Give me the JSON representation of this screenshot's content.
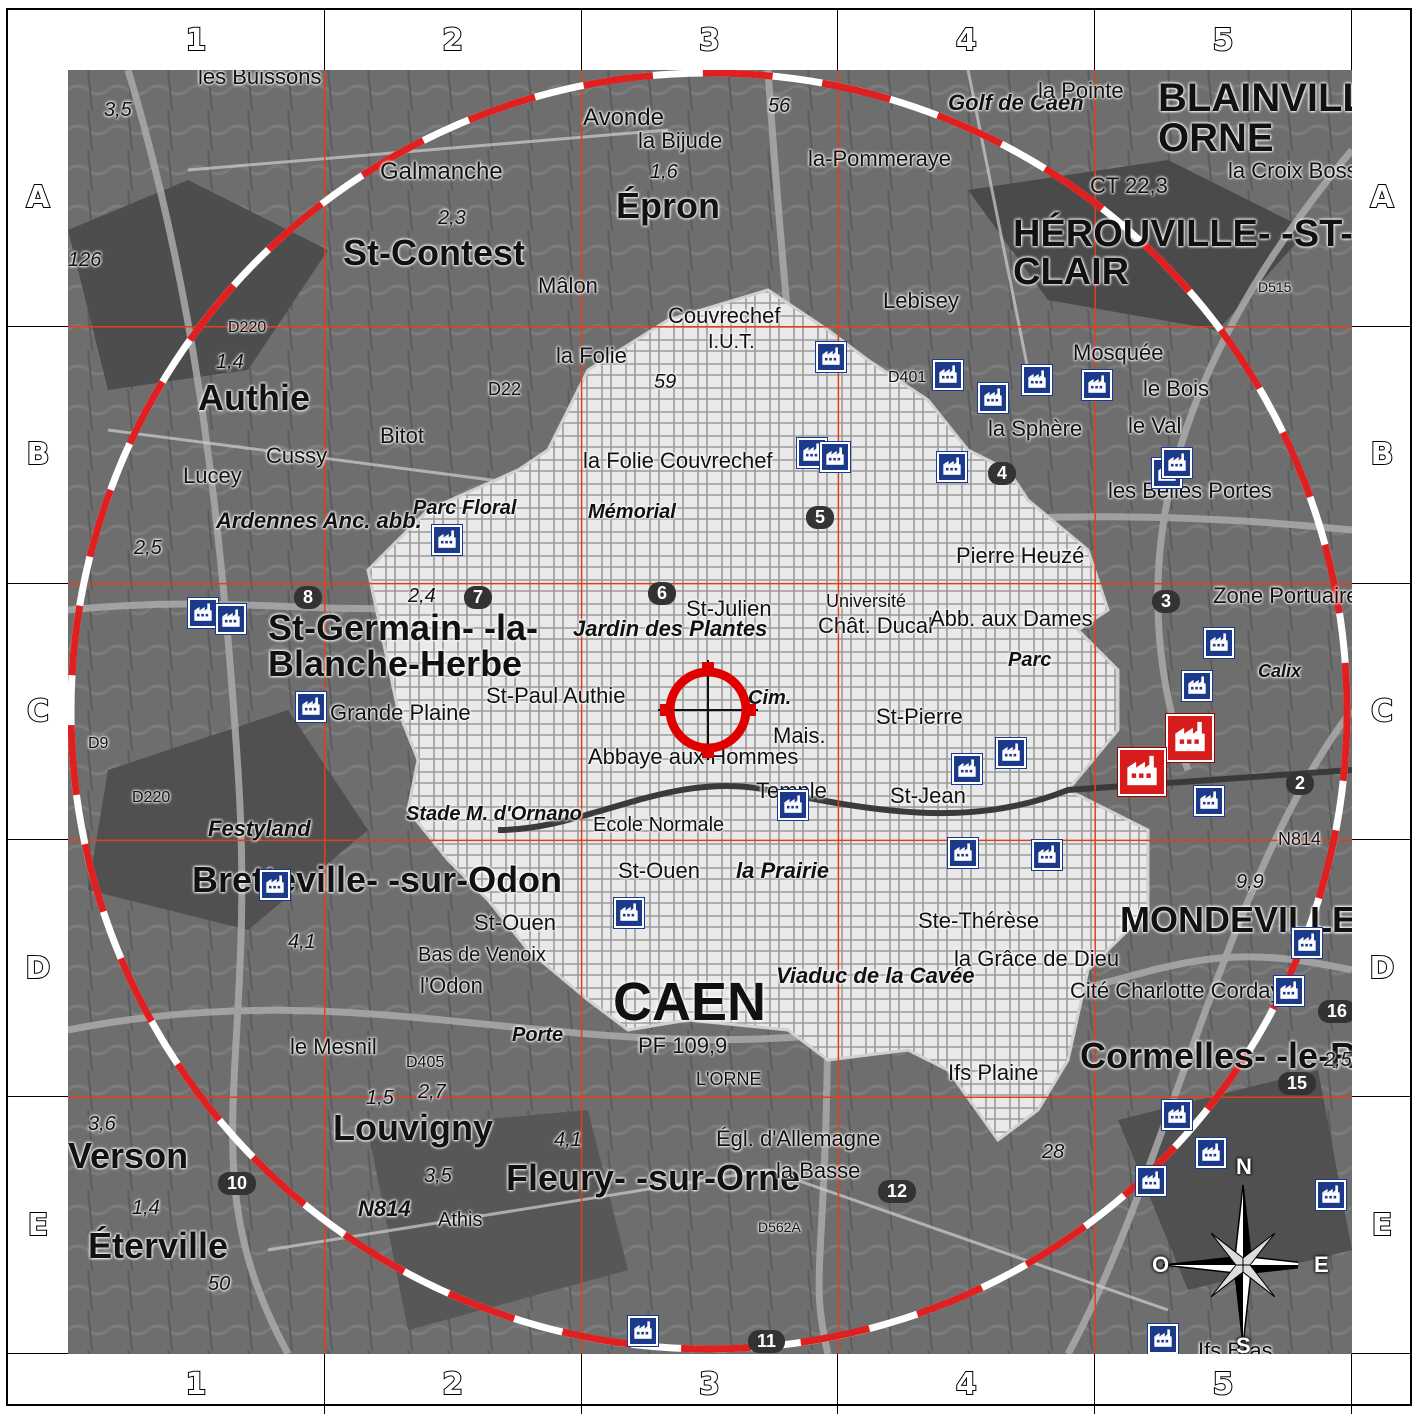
{
  "grid": {
    "columns": [
      "1",
      "2",
      "3",
      "4",
      "5"
    ],
    "rows": [
      "A",
      "B",
      "C",
      "D",
      "E"
    ]
  },
  "colors": {
    "ring_red": "#e02020",
    "ring_white": "#ffffff",
    "grid_line": "#e0401a",
    "factory_blue": "#1b3a8c",
    "factory_red": "#d81b1b",
    "urban_area": "#efefef",
    "map_base": "#6b6b6b"
  },
  "target": {
    "icon": "crosshair-target-icon",
    "label": ""
  },
  "compass": {
    "icon": "compass-rose-icon",
    "n": "N",
    "e": "E",
    "s": "S",
    "w": "O"
  },
  "places": [
    {
      "key": "les_buissons",
      "text": "les Buissons"
    },
    {
      "key": "galmanche",
      "text": "Galmanche"
    },
    {
      "key": "st_contest",
      "text": "St-Contest"
    },
    {
      "key": "malon",
      "text": "Mâlon"
    },
    {
      "key": "avonde",
      "text": "Avonde"
    },
    {
      "key": "la_bijude",
      "text": "la Bijude"
    },
    {
      "key": "epron",
      "text": "Épron"
    },
    {
      "key": "la_pommeraye",
      "text": "la-Pommeraye"
    },
    {
      "key": "golf_de_caen",
      "text": "Golf de Caen"
    },
    {
      "key": "la_pointe",
      "text": "la Pointe"
    },
    {
      "key": "blainville",
      "text": "BLAINVILLE -SUR-ORNE"
    },
    {
      "key": "la_croix_bossee",
      "text": "la Croix Bossée"
    },
    {
      "key": "herouville",
      "text": "HÉROUVILLE- -ST-CLAIR"
    },
    {
      "key": "lebisey",
      "text": "Lebisey"
    },
    {
      "key": "couvrechef",
      "text": "Couvrechef"
    },
    {
      "key": "iut",
      "text": "I.U.T."
    },
    {
      "key": "la_folie",
      "text": "la Folie"
    },
    {
      "key": "authie",
      "text": "Authie"
    },
    {
      "key": "bitot",
      "text": "Bitot"
    },
    {
      "key": "cussy",
      "text": "Cussy"
    },
    {
      "key": "lucey",
      "text": "Lucey"
    },
    {
      "key": "ardennes",
      "text": "Ardennes Anc. abb."
    },
    {
      "key": "parc_floral",
      "text": "Parc Floral"
    },
    {
      "key": "la_folie_couvrechef",
      "text": "la Folie Couvrechef"
    },
    {
      "key": "memorial",
      "text": "Mémorial"
    },
    {
      "key": "mosquee",
      "text": "Mosquée"
    },
    {
      "key": "le_bois",
      "text": "le Bois"
    },
    {
      "key": "la_sphere",
      "text": "la Sphère"
    },
    {
      "key": "le_val",
      "text": "le Val"
    },
    {
      "key": "les_belles_portes",
      "text": "les Belles Portes"
    },
    {
      "key": "pierre_heuze",
      "text": "Pierre Heuzé"
    },
    {
      "key": "st_germain",
      "text": "St-Germain- -la-Blanche-Herbe"
    },
    {
      "key": "jardin_des_plantes",
      "text": "Jardin des Plantes"
    },
    {
      "key": "st_julien",
      "text": "St-Julien"
    },
    {
      "key": "universite",
      "text": "Université"
    },
    {
      "key": "chat_ducal",
      "text": "Chât. Ducal"
    },
    {
      "key": "abb_aux_dames",
      "text": "Abb. aux Dames"
    },
    {
      "key": "parc",
      "text": "Parc"
    },
    {
      "key": "zone_portuaire",
      "text": "Zone Portuaire"
    },
    {
      "key": "calix",
      "text": "Calix"
    },
    {
      "key": "st_paul_authie",
      "text": "St-Paul Authie"
    },
    {
      "key": "grande_plaine",
      "text": "Grande Plaine"
    },
    {
      "key": "cim",
      "text": "Cim."
    },
    {
      "key": "mais",
      "text": "Mais."
    },
    {
      "key": "st_pierre",
      "text": "St-Pierre"
    },
    {
      "key": "abbaye_aux_hommes",
      "text": "Abbaye aux Hommes"
    },
    {
      "key": "temple",
      "text": "Temple"
    },
    {
      "key": "st_jean",
      "text": "St-Jean"
    },
    {
      "key": "stade",
      "text": "Stade M. d'Ornano"
    },
    {
      "key": "festyland",
      "text": "Festyland"
    },
    {
      "key": "ecole_normale",
      "text": "Ecole Normale"
    },
    {
      "key": "st_ouen",
      "text": "St-Ouen"
    },
    {
      "key": "la_prairie",
      "text": "la Prairie"
    },
    {
      "key": "bretteville",
      "text": "Bretteville- -sur-Odon"
    },
    {
      "key": "st_ouen2",
      "text": "St-Ouen"
    },
    {
      "key": "bas_de_venoix",
      "text": "Bas de Venoix"
    },
    {
      "key": "lodon",
      "text": "l'Odon"
    },
    {
      "key": "caen",
      "text": "CAEN"
    },
    {
      "key": "viaduc",
      "text": "Viaduc de la Cavée"
    },
    {
      "key": "ste_therese",
      "text": "Ste-Thérèse"
    },
    {
      "key": "la_grace",
      "text": "la Grâce de Dieu"
    },
    {
      "key": "mondeville",
      "text": "MONDEVILLE"
    },
    {
      "key": "cite_charlotte",
      "text": "Cité Charlotte Corday"
    },
    {
      "key": "cormelles",
      "text": "Cormelles- -le-Royal"
    },
    {
      "key": "le_mesnil",
      "text": "le Mesnil"
    },
    {
      "key": "porte",
      "text": "Porte"
    },
    {
      "key": "pf",
      "text": "PF 109,9"
    },
    {
      "key": "ifs_plaine",
      "text": "Ifs Plaine"
    },
    {
      "key": "louvigny",
      "text": "Louvigny"
    },
    {
      "key": "fleury",
      "text": "Fleury- -sur-Orne"
    },
    {
      "key": "egl_allemagne",
      "text": "Égl. d'Allemagne"
    },
    {
      "key": "la_basse",
      "text": "la Basse"
    },
    {
      "key": "athis",
      "text": "Athis"
    },
    {
      "key": "verson",
      "text": "Verson"
    },
    {
      "key": "eterville",
      "text": "Éterville"
    },
    {
      "key": "lorne",
      "text": "L'ORNE"
    },
    {
      "key": "ifs_bras",
      "text": "Ifs Bras"
    }
  ],
  "road_labels": [
    {
      "key": "d22",
      "text": "D22"
    },
    {
      "key": "d220",
      "text": "D220"
    },
    {
      "key": "d220b",
      "text": "D220"
    },
    {
      "key": "d9",
      "text": "D9"
    },
    {
      "key": "d405",
      "text": "D405"
    },
    {
      "key": "n814",
      "text": "N814"
    },
    {
      "key": "n814b",
      "text": "N814"
    },
    {
      "key": "d562a",
      "text": "D562A"
    },
    {
      "key": "d515",
      "text": "D515"
    },
    {
      "key": "d401",
      "text": "D401"
    },
    {
      "key": "ct",
      "text": "CT 22,3"
    }
  ],
  "exits": [
    {
      "key": "e2",
      "text": "2"
    },
    {
      "key": "e3",
      "text": "3"
    },
    {
      "key": "e4",
      "text": "4"
    },
    {
      "key": "e5",
      "text": "5"
    },
    {
      "key": "e6",
      "text": "6"
    },
    {
      "key": "e7",
      "text": "7"
    },
    {
      "key": "e8",
      "text": "8"
    },
    {
      "key": "e10",
      "text": "10"
    },
    {
      "key": "e11",
      "text": "11"
    },
    {
      "key": "e12",
      "text": "12"
    },
    {
      "key": "e15",
      "text": "15"
    },
    {
      "key": "e16",
      "text": "16"
    }
  ],
  "numbers": [
    {
      "key": "n1",
      "text": "3,5"
    },
    {
      "key": "n2",
      "text": "2,3"
    },
    {
      "key": "n3",
      "text": "1,6"
    },
    {
      "key": "n4",
      "text": "56"
    },
    {
      "key": "n5",
      "text": "1,4"
    },
    {
      "key": "n6",
      "text": "2,5"
    },
    {
      "key": "n7",
      "text": "59"
    },
    {
      "key": "n8",
      "text": "2,4"
    },
    {
      "key": "n9",
      "text": "4,1"
    },
    {
      "key": "n10",
      "text": "1,5"
    },
    {
      "key": "n11",
      "text": "2,7"
    },
    {
      "key": "n12",
      "text": "4,1"
    },
    {
      "key": "n13",
      "text": "3,6"
    },
    {
      "key": "n14",
      "text": "1,4"
    },
    {
      "key": "n15",
      "text": "50"
    },
    {
      "key": "n16",
      "text": "28"
    },
    {
      "key": "n17",
      "text": "9,9"
    },
    {
      "key": "n18",
      "text": "2,5"
    },
    {
      "key": "n19",
      "text": "3,5"
    },
    {
      "key": "n20",
      "text": "126"
    }
  ],
  "factories_blue_count": 35,
  "factories_red_count": 2
}
